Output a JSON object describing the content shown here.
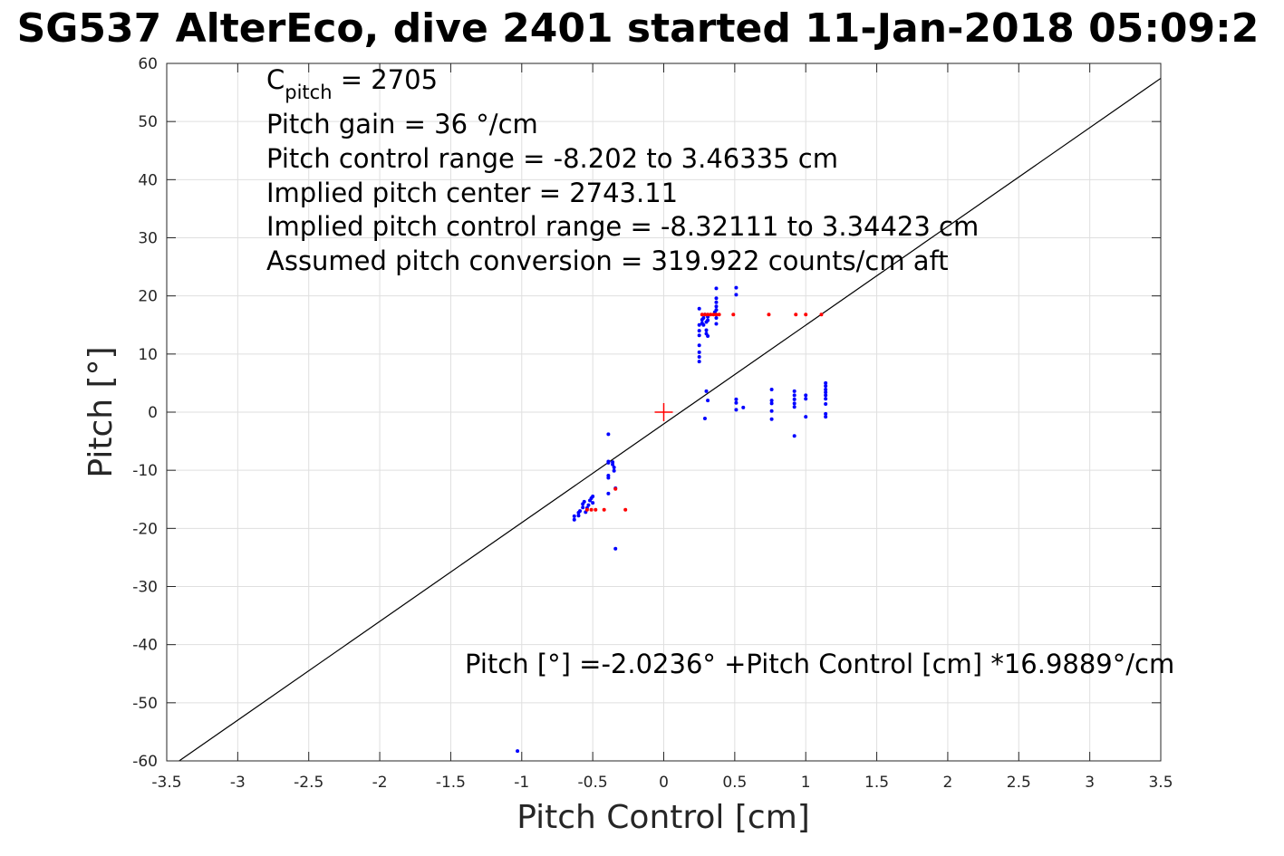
{
  "chart_data": {
    "type": "scatter",
    "title": "SG537 AlterEco, dive 2401 started 11-Jan-2018 05:09:2",
    "xlabel": "Pitch Control [cm]",
    "ylabel": "Pitch [°]",
    "xlim": [
      -3.5,
      3.5
    ],
    "ylim": [
      -60,
      60
    ],
    "x_ticks": [
      -3.5,
      -3,
      -2.5,
      -2,
      -1.5,
      -1,
      -0.5,
      0,
      0.5,
      1,
      1.5,
      2,
      2.5,
      3,
      3.5
    ],
    "y_ticks": [
      -60,
      -50,
      -40,
      -30,
      -20,
      -10,
      0,
      10,
      20,
      30,
      40,
      50,
      60
    ],
    "x_tick_labels": [
      "-3.5",
      "-3",
      "-2.5",
      "-2",
      "-1.5",
      "-1",
      "-0.5",
      "0",
      "0.5",
      "1",
      "1.5",
      "2",
      "2.5",
      "3",
      "3.5"
    ],
    "y_tick_labels": [
      "-60",
      "-50",
      "-40",
      "-30",
      "-20",
      "-10",
      "0",
      "10",
      "20",
      "30",
      "40",
      "50",
      "60"
    ],
    "grid": true,
    "annotations": {
      "c_pitch_symbol": "C",
      "c_pitch_subscript": "pitch",
      "c_pitch_value": " = 2705",
      "lines": [
        "Pitch gain = 36 °/cm",
        "Pitch control range = -8.202 to 3.46335 cm",
        "Implied pitch center = 2743.11",
        "Implied pitch control range = -8.32111 to 3.34423 cm",
        "Assumed pitch conversion = 319.922 counts/cm aft"
      ],
      "fit_equation": "Pitch [°] =-2.0236° +Pitch Control [cm] *16.9889°/cm"
    },
    "fit_line": {
      "intercept": -2.0236,
      "slope": 16.9889,
      "color": "#000000"
    },
    "center_marker": {
      "x": 0,
      "y": 0,
      "color": "#ff0000"
    },
    "series": [
      {
        "color": "#0000ff",
        "points": [
          [
            -0.63,
            -18.5
          ],
          [
            -0.63,
            -17.9
          ],
          [
            -0.6,
            -17.8
          ],
          [
            -0.6,
            -17.3
          ],
          [
            -0.59,
            -17.0
          ],
          [
            -0.57,
            -16.4
          ],
          [
            -0.57,
            -15.8
          ],
          [
            -0.56,
            -15.4
          ],
          [
            -0.55,
            -17.2
          ],
          [
            -0.54,
            -16.5
          ],
          [
            -0.53,
            -16.0
          ],
          [
            -0.52,
            -15.2
          ],
          [
            -0.51,
            -14.8
          ],
          [
            -0.5,
            -14.5
          ],
          [
            -0.5,
            -15.6
          ],
          [
            -0.39,
            -3.8
          ],
          [
            -0.39,
            -8.5
          ],
          [
            -0.39,
            -8.7
          ],
          [
            -0.39,
            -10.9
          ],
          [
            -0.39,
            -11.3
          ],
          [
            -0.39,
            -14.0
          ],
          [
            -0.36,
            -8.6
          ],
          [
            -0.36,
            -9.0
          ],
          [
            -0.35,
            -9.5
          ],
          [
            -0.35,
            -10.1
          ],
          [
            -0.34,
            -13.1
          ],
          [
            -0.34,
            -23.5
          ],
          [
            -1.03,
            -58.3
          ],
          [
            0.25,
            17.8
          ],
          [
            0.25,
            15.0
          ],
          [
            0.25,
            14.0
          ],
          [
            0.25,
            13.2
          ],
          [
            0.25,
            11.5
          ],
          [
            0.25,
            10.3
          ],
          [
            0.25,
            9.5
          ],
          [
            0.25,
            8.7
          ],
          [
            0.27,
            15.9
          ],
          [
            0.27,
            15.3
          ],
          [
            0.28,
            16.2
          ],
          [
            0.28,
            15.0
          ],
          [
            0.29,
            16.8
          ],
          [
            0.3,
            15.5
          ],
          [
            0.3,
            14.1
          ],
          [
            0.3,
            13.5
          ],
          [
            0.31,
            16.4
          ],
          [
            0.31,
            15.8
          ],
          [
            0.31,
            13.1
          ],
          [
            0.3,
            3.6
          ],
          [
            0.31,
            2.0
          ],
          [
            0.29,
            -1.1
          ],
          [
            0.37,
            21.3
          ],
          [
            0.37,
            19.6
          ],
          [
            0.37,
            18.9
          ],
          [
            0.37,
            18.2
          ],
          [
            0.37,
            17.6
          ],
          [
            0.36,
            17.2
          ],
          [
            0.37,
            16.2
          ],
          [
            0.37,
            15.2
          ],
          [
            0.51,
            21.4
          ],
          [
            0.51,
            20.2
          ],
          [
            0.51,
            2.2
          ],
          [
            0.51,
            1.6
          ],
          [
            0.51,
            0.4
          ],
          [
            0.56,
            0.8
          ],
          [
            0.76,
            3.9
          ],
          [
            0.76,
            2.0
          ],
          [
            0.76,
            1.5
          ],
          [
            0.76,
            0.2
          ],
          [
            0.76,
            -1.2
          ],
          [
            0.92,
            3.6
          ],
          [
            0.92,
            2.9
          ],
          [
            0.92,
            2.2
          ],
          [
            0.92,
            1.5
          ],
          [
            0.92,
            0.9
          ],
          [
            0.92,
            -4.1
          ],
          [
            1.0,
            2.9
          ],
          [
            1.0,
            2.3
          ],
          [
            1.0,
            -0.8
          ],
          [
            1.14,
            5.0
          ],
          [
            1.14,
            4.5
          ],
          [
            1.14,
            3.9
          ],
          [
            1.14,
            3.4
          ],
          [
            1.14,
            2.9
          ],
          [
            1.14,
            2.3
          ],
          [
            1.14,
            1.4
          ],
          [
            1.14,
            -0.3
          ],
          [
            1.14,
            -0.8
          ]
        ]
      },
      {
        "color": "#ff0000",
        "points": [
          [
            -0.54,
            -16.8
          ],
          [
            -0.51,
            -16.8
          ],
          [
            -0.48,
            -16.8
          ],
          [
            -0.42,
            -16.8
          ],
          [
            -0.34,
            -13.2
          ],
          [
            -0.27,
            -16.8
          ],
          [
            0.27,
            16.8
          ],
          [
            0.29,
            16.8
          ],
          [
            0.31,
            16.8
          ],
          [
            0.33,
            16.8
          ],
          [
            0.35,
            16.8
          ],
          [
            0.37,
            16.8
          ],
          [
            0.39,
            16.8
          ],
          [
            0.49,
            16.8
          ],
          [
            0.74,
            16.8
          ],
          [
            0.93,
            16.8
          ],
          [
            1.0,
            16.8
          ],
          [
            1.11,
            16.8
          ]
        ]
      }
    ]
  }
}
